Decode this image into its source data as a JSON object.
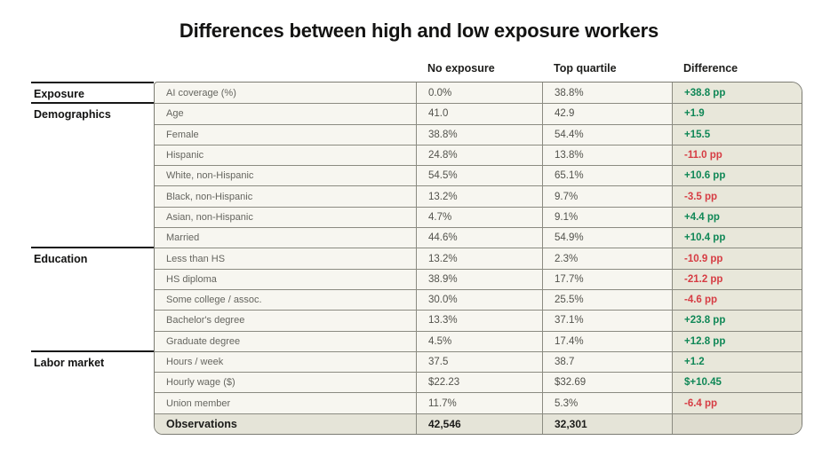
{
  "chart_data": {
    "type": "table",
    "title": "Differences between high and low exposure workers",
    "column_headers": [
      "No exposure",
      "Top quartile",
      "Difference"
    ],
    "colors": {
      "positive_difference": "#0f8756",
      "negative_difference": "#d63c43",
      "table_background": "#f7f6f0",
      "difference_column_background": "#e8e7da",
      "footer_row_background": "#e5e4d8"
    },
    "sections": [
      {
        "label": "Exposure",
        "rows": [
          {
            "label": "AI coverage (%)",
            "no_exposure": "0.0%",
            "top_quartile": "38.8%",
            "difference": "+38.8 pp",
            "trend": "up"
          }
        ]
      },
      {
        "label": "Demographics",
        "rows": [
          {
            "label": "Age",
            "no_exposure": "41.0",
            "top_quartile": "42.9",
            "difference": "+1.9",
            "trend": "up"
          },
          {
            "label": "Female",
            "no_exposure": "38.8%",
            "top_quartile": "54.4%",
            "difference": "+15.5",
            "trend": "up"
          },
          {
            "label": "Hispanic",
            "no_exposure": "24.8%",
            "top_quartile": "13.8%",
            "difference": "-11.0 pp",
            "trend": "down"
          },
          {
            "label": "White, non-Hispanic",
            "no_exposure": "54.5%",
            "top_quartile": "65.1%",
            "difference": "+10.6 pp",
            "trend": "up"
          },
          {
            "label": "Black, non-Hispanic",
            "no_exposure": "13.2%",
            "top_quartile": "9.7%",
            "difference": "-3.5 pp",
            "trend": "down"
          },
          {
            "label": "Asian, non-Hispanic",
            "no_exposure": "4.7%",
            "top_quartile": "9.1%",
            "difference": "+4.4 pp",
            "trend": "up"
          },
          {
            "label": "Married",
            "no_exposure": "44.6%",
            "top_quartile": "54.9%",
            "difference": "+10.4 pp",
            "trend": "up"
          }
        ]
      },
      {
        "label": "Education",
        "rows": [
          {
            "label": "Less than HS",
            "no_exposure": "13.2%",
            "top_quartile": "2.3%",
            "difference": "-10.9 pp",
            "trend": "down"
          },
          {
            "label": "HS diploma",
            "no_exposure": "38.9%",
            "top_quartile": "17.7%",
            "difference": "-21.2 pp",
            "trend": "down"
          },
          {
            "label": "Some college / assoc.",
            "no_exposure": "30.0%",
            "top_quartile": "25.5%",
            "difference": "-4.6 pp",
            "trend": "down"
          },
          {
            "label": "Bachelor's degree",
            "no_exposure": "13.3%",
            "top_quartile": "37.1%",
            "difference": "+23.8 pp",
            "trend": "up"
          },
          {
            "label": "Graduate degree",
            "no_exposure": "4.5%",
            "top_quartile": "17.4%",
            "difference": "+12.8 pp",
            "trend": "up"
          }
        ]
      },
      {
        "label": "Labor market",
        "rows": [
          {
            "label": "Hours / week",
            "no_exposure": "37.5",
            "top_quartile": "38.7",
            "difference": "+1.2",
            "trend": "up"
          },
          {
            "label": "Hourly wage ($)",
            "no_exposure": "$22.23",
            "top_quartile": "$32.69",
            "difference": "$+10.45",
            "trend": "up"
          },
          {
            "label": "Union member",
            "no_exposure": "11.7%",
            "top_quartile": "5.3%",
            "difference": "-6.4 pp",
            "trend": "down"
          }
        ]
      }
    ],
    "footer_row": {
      "label": "Observations",
      "no_exposure": "42,546",
      "top_quartile": "32,301",
      "difference": ""
    }
  }
}
